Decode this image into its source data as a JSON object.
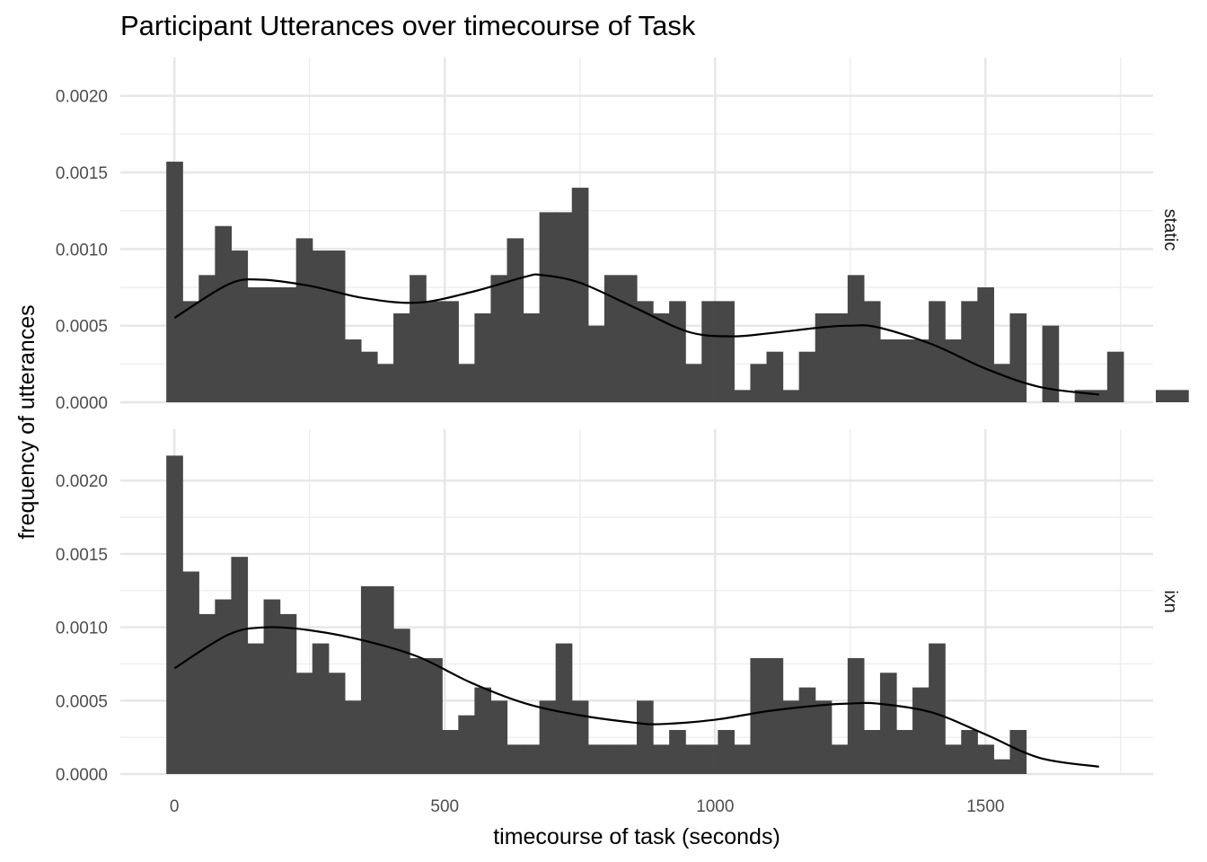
{
  "chart_data": {
    "type": "bar",
    "title": "Participant Utterances over timecourse of Task",
    "xlabel": "timecourse of task (seconds)",
    "ylabel": "frequency of utterances",
    "xlim": [
      -100,
      1810
    ],
    "x_ticks": [
      0,
      500,
      1000,
      1500
    ],
    "x_tick_labels": [
      "0",
      "500",
      "1000",
      "1500"
    ],
    "bin_width": 30,
    "bin_start": -15,
    "grid": true,
    "bar_color": "#474747",
    "curve_color": "#000000",
    "panels": [
      {
        "name": "static",
        "ylim": [
          0,
          0.00225
        ],
        "y_ticks": [
          0,
          0.0005,
          0.001,
          0.0015,
          0.002
        ],
        "y_tick_labels": [
          "0.0000",
          "0.0005",
          "0.0010",
          "0.0015",
          "0.0020"
        ],
        "bin_values": [
          0.00157,
          0.00066,
          0.00083,
          0.00115,
          0.00099,
          0.00075,
          0.00075,
          0.00075,
          0.00107,
          0.00099,
          0.00099,
          0.00041,
          0.00033,
          0.00025,
          0.00058,
          0.00083,
          0.00066,
          0.00066,
          0.00025,
          0.00058,
          0.00083,
          0.00107,
          0.00058,
          0.00124,
          0.00124,
          0.0014,
          0.0005,
          0.00083,
          0.00083,
          0.00066,
          0.00058,
          0.00066,
          0.00025,
          0.00066,
          0.00066,
          8e-05,
          0.00025,
          0.00033,
          8e-05,
          0.00033,
          0.00058,
          0.00058,
          0.00083,
          0.00066,
          0.00041,
          0.00041,
          0.00041,
          0.00066,
          0.00041,
          0.00066,
          0.00075,
          0.00025,
          0.00058,
          0.0,
          0.0005,
          0.0,
          8e-05,
          8e-05,
          0.00033,
          0.0,
          0.0,
          8e-05,
          8e-05
        ],
        "density_x": [
          0,
          100,
          160,
          250,
          350,
          450,
          550,
          650,
          680,
          750,
          850,
          950,
          1030,
          1100,
          1200,
          1250,
          1300,
          1400,
          1500,
          1600,
          1710
        ],
        "density_y": [
          0.00055,
          0.00077,
          0.0008,
          0.00076,
          0.00068,
          0.00065,
          0.00072,
          0.00082,
          0.00083,
          0.00078,
          0.00062,
          0.00046,
          0.00043,
          0.00045,
          0.00049,
          0.0005,
          0.00049,
          0.00038,
          0.00022,
          0.0001,
          5e-05
        ]
      },
      {
        "name": "ixn",
        "ylim": [
          0,
          0.00235
        ],
        "y_ticks": [
          0,
          0.0005,
          0.001,
          0.0015,
          0.002
        ],
        "y_tick_labels": [
          "0.0000",
          "0.0005",
          "0.0010",
          "0.0015",
          "0.0020"
        ],
        "bin_values": [
          0.00217,
          0.00138,
          0.00109,
          0.00119,
          0.00148,
          0.00089,
          0.00119,
          0.00109,
          0.00069,
          0.00089,
          0.00069,
          0.0005,
          0.00128,
          0.00128,
          0.00099,
          0.00079,
          0.00079,
          0.0003,
          0.0004,
          0.00059,
          0.0005,
          0.0002,
          0.0002,
          0.0005,
          0.00089,
          0.0005,
          0.0002,
          0.0002,
          0.0002,
          0.0005,
          0.0002,
          0.0003,
          0.0002,
          0.0002,
          0.0003,
          0.0002,
          0.00079,
          0.00079,
          0.0005,
          0.00059,
          0.0005,
          0.0002,
          0.00079,
          0.0003,
          0.00069,
          0.0003,
          0.00059,
          0.00089,
          0.0002,
          0.0003,
          0.0002,
          0.0001,
          0.0003
        ],
        "density_x": [
          0,
          100,
          170,
          250,
          350,
          450,
          550,
          650,
          750,
          850,
          900,
          1000,
          1100,
          1200,
          1250,
          1300,
          1400,
          1500,
          1600,
          1710
        ],
        "density_y": [
          0.00072,
          0.00095,
          0.001,
          0.00098,
          0.00091,
          0.0008,
          0.00062,
          0.00048,
          0.0004,
          0.00035,
          0.00034,
          0.00037,
          0.00043,
          0.00047,
          0.00048,
          0.00048,
          0.00042,
          0.00027,
          0.00011,
          5e-05
        ]
      }
    ]
  }
}
